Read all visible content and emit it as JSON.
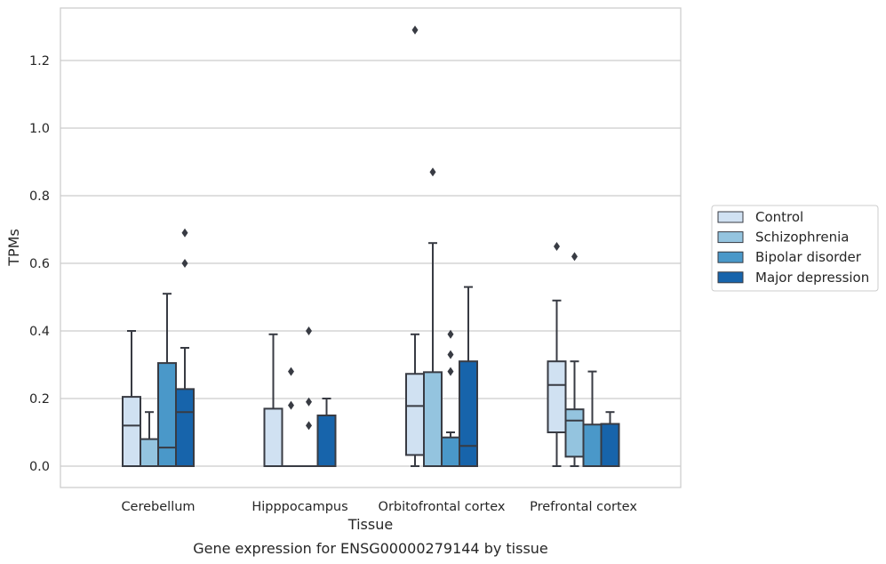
{
  "chart_data": {
    "type": "box",
    "title": "",
    "caption": "Gene expression for ENSG00000279144 by tissue",
    "xlabel": "Tissue",
    "ylabel": "TPMs",
    "ylim": [
      -0.065,
      1.36
    ],
    "yticks": [
      0.0,
      0.2,
      0.4,
      0.6,
      0.8,
      1.0,
      1.2
    ],
    "ytick_labels": [
      "0.0",
      "0.2",
      "0.4",
      "0.6",
      "0.8",
      "1.0",
      "1.2"
    ],
    "grid": "horizontal",
    "legend_position": "right, outside plot",
    "categories": [
      "Cerebellum",
      "Hipppocampus",
      "Orbitofrontal cortex",
      "Prefrontal cortex"
    ],
    "series": [
      {
        "name": "Control",
        "color": "#d0e1f2",
        "boxes": [
          {
            "whislo": 0.0,
            "q1": 0.0,
            "med": 0.12,
            "q3": 0.205,
            "whishi": 0.4,
            "fliers": []
          },
          {
            "whislo": 0.0,
            "q1": 0.0,
            "med": 0.0,
            "q3": 0.17,
            "whishi": 0.39,
            "fliers": []
          },
          {
            "whislo": 0.0,
            "q1": 0.033,
            "med": 0.178,
            "q3": 0.273,
            "whishi": 0.39,
            "fliers": [
              1.29
            ]
          },
          {
            "whislo": 0.0,
            "q1": 0.1,
            "med": 0.24,
            "q3": 0.31,
            "whishi": 0.49,
            "fliers": [
              0.65
            ]
          }
        ]
      },
      {
        "name": "Schizophrenia",
        "color": "#94c4df",
        "boxes": [
          {
            "whislo": 0.0,
            "q1": 0.0,
            "med": 0.0,
            "q3": 0.08,
            "whishi": 0.16,
            "fliers": []
          },
          {
            "whislo": 0.0,
            "q1": 0.0,
            "med": 0.0,
            "q3": 0.0,
            "whishi": 0.0,
            "fliers": [
              0.28,
              0.18
            ]
          },
          {
            "whislo": 0.0,
            "q1": 0.0,
            "med": 0.0,
            "q3": 0.278,
            "whishi": 0.66,
            "fliers": [
              0.87
            ]
          },
          {
            "whislo": 0.0,
            "q1": 0.028,
            "med": 0.135,
            "q3": 0.168,
            "whishi": 0.31,
            "fliers": [
              0.62
            ]
          }
        ]
      },
      {
        "name": "Bipolar disorder",
        "color": "#4a98c9",
        "boxes": [
          {
            "whislo": 0.0,
            "q1": 0.0,
            "med": 0.055,
            "q3": 0.305,
            "whishi": 0.51,
            "fliers": []
          },
          {
            "whislo": 0.0,
            "q1": 0.0,
            "med": 0.0,
            "q3": 0.0,
            "whishi": 0.0,
            "fliers": [
              0.4,
              0.19,
              0.12
            ]
          },
          {
            "whislo": 0.0,
            "q1": 0.0,
            "med": 0.0,
            "q3": 0.085,
            "whishi": 0.1,
            "fliers": [
              0.39,
              0.33,
              0.28
            ]
          },
          {
            "whislo": 0.0,
            "q1": 0.0,
            "med": 0.0,
            "q3": 0.123,
            "whishi": 0.28,
            "fliers": []
          }
        ]
      },
      {
        "name": "Major depression",
        "color": "#1764ab",
        "boxes": [
          {
            "whislo": 0.0,
            "q1": 0.0,
            "med": 0.16,
            "q3": 0.228,
            "whishi": 0.35,
            "fliers": [
              0.69,
              0.6
            ]
          },
          {
            "whislo": 0.0,
            "q1": 0.0,
            "med": 0.0,
            "q3": 0.15,
            "whishi": 0.2,
            "fliers": []
          },
          {
            "whislo": 0.0,
            "q1": 0.0,
            "med": 0.06,
            "q3": 0.31,
            "whishi": 0.53,
            "fliers": []
          },
          {
            "whislo": 0.0,
            "q1": 0.0,
            "med": 0.0,
            "q3": 0.125,
            "whishi": 0.16,
            "fliers": []
          }
        ]
      }
    ]
  }
}
